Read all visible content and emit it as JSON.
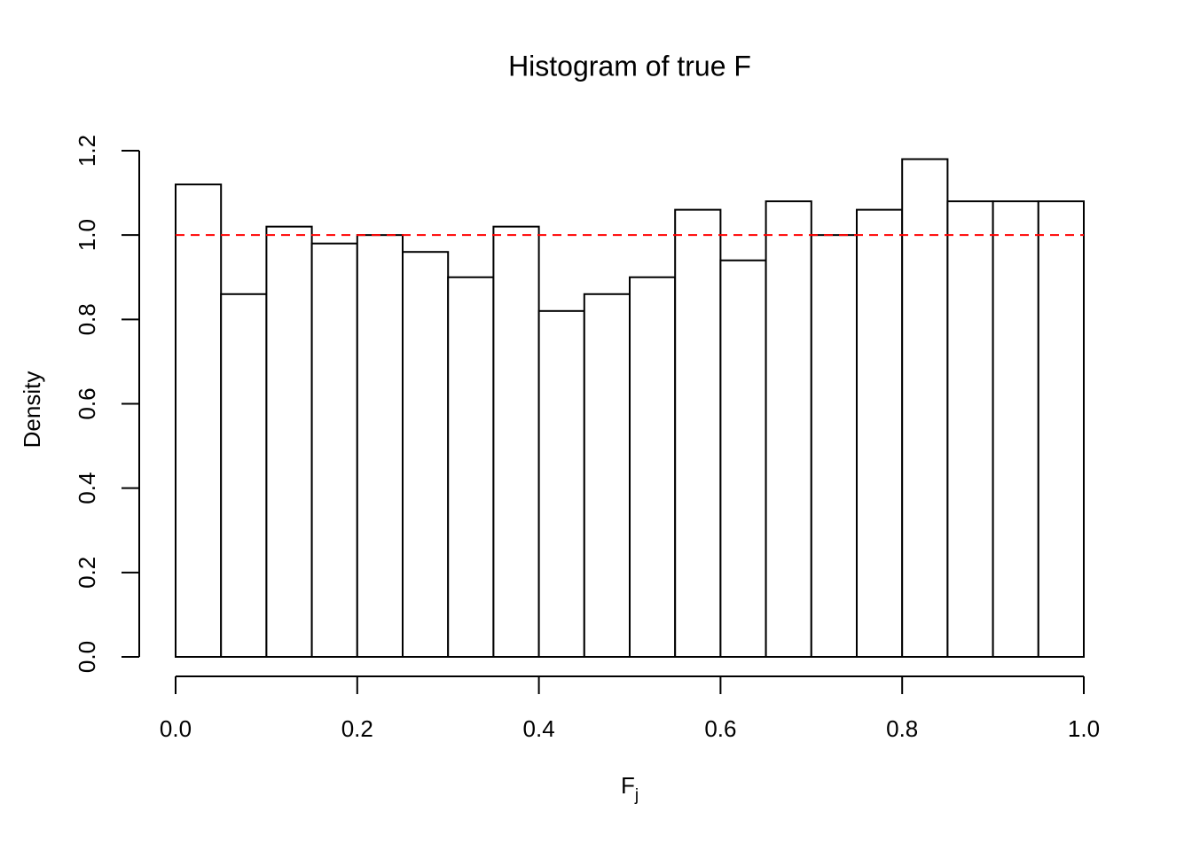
{
  "chart_data": {
    "type": "histogram",
    "title": "Histogram of true F",
    "xlabel": "F",
    "xlabel_sub": "j",
    "ylabel": "Density",
    "bins": [
      0,
      0.05,
      0.1,
      0.15,
      0.2,
      0.25,
      0.3,
      0.35,
      0.4,
      0.45,
      0.5,
      0.55,
      0.6,
      0.65,
      0.7,
      0.75,
      0.8,
      0.85,
      0.9,
      0.95,
      1
    ],
    "values": [
      1.12,
      0.86,
      1.02,
      0.98,
      1.0,
      0.96,
      0.9,
      1.02,
      0.82,
      0.86,
      0.9,
      1.06,
      0.94,
      1.08,
      1.0,
      1.06,
      1.18,
      1.08,
      1.08,
      1.08
    ],
    "color": "#ffffff",
    "edge_color": "#000000",
    "xlim": [
      0,
      1
    ],
    "xticks": [
      {
        "value": 0,
        "label": "0.0"
      },
      0.2,
      0.4,
      0.6,
      0.8,
      {
        "value": 1,
        "label": "1.0"
      }
    ],
    "ylim": [
      0,
      1.2
    ],
    "yticks": [
      {
        "value": 0,
        "label": "0.0"
      },
      0.2,
      0.4,
      0.6,
      0.8,
      {
        "value": 1,
        "label": "1.0"
      },
      1.2
    ],
    "reference_line": {
      "value": 1,
      "color": "#ff0000",
      "style": "dashed"
    }
  }
}
